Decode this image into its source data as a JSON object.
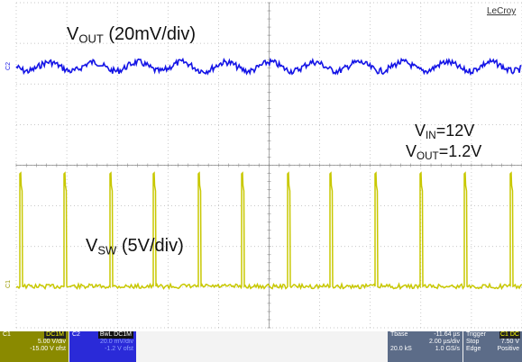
{
  "brand": "LeCroy",
  "annotations": {
    "vout_main": "V",
    "vout_sub": "OUT",
    "vout_rest": " (20mV/div)",
    "vsw_main": "V",
    "vsw_sub": "SW",
    "vsw_rest": " (5V/div)",
    "vin_main": "V",
    "vin_sub": "IN",
    "vin_rest": "=12V",
    "vout2_main": "V",
    "vout2_sub": "OUT",
    "vout2_rest": "=1.2V"
  },
  "channel_markers": {
    "c1": "C1",
    "c2": "C2"
  },
  "panels": {
    "c1": {
      "label": "C1",
      "badge": "DC1M",
      "vdiv": "5.00 V/div",
      "offset": "-15.00 V ofst"
    },
    "c2": {
      "label": "C2",
      "badge": "BwL DC1M",
      "vdiv": "20.0 mV/div",
      "offset": "-1.2 V ofst"
    },
    "tbase": {
      "label": "Tbase",
      "value": "-11.64 µs",
      "div": "2.00 µs/div",
      "samples": "20.0 kS",
      "rate": "1.0 GS/s"
    },
    "trigger": {
      "label": "Trigger",
      "badge": "C1 DC",
      "mode": "Stop",
      "type": "Edge",
      "level": "7.50 V",
      "slope": "Positive"
    }
  },
  "colors": {
    "ch1": "#c8c800",
    "ch2": "#1414e6",
    "grid": "#aaaaaa"
  }
}
